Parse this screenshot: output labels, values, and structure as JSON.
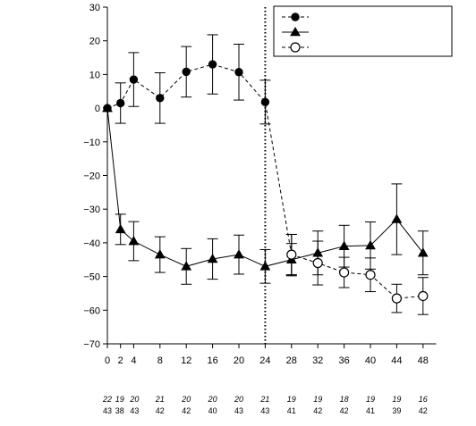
{
  "chart_data": {
    "type": "line",
    "x_ticks": [
      0,
      2,
      4,
      8,
      12,
      16,
      20,
      24,
      28,
      32,
      36,
      40,
      44,
      48
    ],
    "y_ticks": [
      30,
      20,
      10,
      0,
      -10,
      -20,
      -30,
      -40,
      -50,
      -60,
      -70
    ],
    "xlim": [
      0,
      50
    ],
    "ylim": [
      -70,
      30
    ],
    "vertical_reference_line": 24,
    "legend": {
      "placement": "top-right",
      "entries": [
        "",
        "",
        ""
      ]
    },
    "series": [
      {
        "marker": "filled-circle",
        "line_style": "dashed",
        "points": [
          {
            "x": 0,
            "y": 0,
            "err": 0
          },
          {
            "x": 2,
            "y": 1.5,
            "err": 6
          },
          {
            "x": 4,
            "y": 8.5,
            "err": 8
          },
          {
            "x": 8,
            "y": 3,
            "err": 7.5
          },
          {
            "x": 12,
            "y": 10.8,
            "err": 7.5
          },
          {
            "x": 16,
            "y": 13,
            "err": 8.8
          },
          {
            "x": 20,
            "y": 10.7,
            "err": 8.3
          },
          {
            "x": 24,
            "y": 1.8,
            "err": 6.5
          },
          {
            "x": 28,
            "y": -43.5,
            "err": 6
          }
        ]
      },
      {
        "marker": "filled-triangle",
        "line_style": "solid",
        "points": [
          {
            "x": 0,
            "y": 0,
            "err": 0
          },
          {
            "x": 2,
            "y": -36,
            "err": 4.5
          },
          {
            "x": 4,
            "y": -39.5,
            "err": 5.8
          },
          {
            "x": 8,
            "y": -43.5,
            "err": 5.3
          },
          {
            "x": 12,
            "y": -47,
            "err": 5.3
          },
          {
            "x": 16,
            "y": -44.8,
            "err": 6
          },
          {
            "x": 20,
            "y": -43.5,
            "err": 5.8
          },
          {
            "x": 24,
            "y": -47,
            "err": 5
          },
          {
            "x": 28,
            "y": -45,
            "err": 4.8
          },
          {
            "x": 32,
            "y": -43,
            "err": 6.5
          },
          {
            "x": 36,
            "y": -41,
            "err": 6.2
          },
          {
            "x": 40,
            "y": -40.8,
            "err": 7
          },
          {
            "x": 44,
            "y": -33,
            "err": 10.5
          },
          {
            "x": 48,
            "y": -43,
            "err": 6.5
          }
        ]
      },
      {
        "marker": "open-circle",
        "line_style": "dashed",
        "points": [
          {
            "x": 28,
            "y": -43.5,
            "err": 6
          },
          {
            "x": 32,
            "y": -46,
            "err": 6.5
          },
          {
            "x": 36,
            "y": -48.8,
            "err": 4.5
          },
          {
            "x": 40,
            "y": -49.5,
            "err": 5
          },
          {
            "x": 44,
            "y": -56.5,
            "err": 4.2
          },
          {
            "x": 48,
            "y": -55.8,
            "err": 5.5
          }
        ]
      }
    ],
    "n_rows": [
      {
        "italic": true,
        "values": [
          {
            "x": 0,
            "text": "22"
          },
          {
            "x": 2,
            "text": "19"
          },
          {
            "x": 4,
            "text": "20"
          },
          {
            "x": 8,
            "text": "21"
          },
          {
            "x": 12,
            "text": "20"
          },
          {
            "x": 16,
            "text": "20"
          },
          {
            "x": 20,
            "text": "20"
          },
          {
            "x": 24,
            "text": "21"
          },
          {
            "x": 28,
            "text": "19"
          },
          {
            "x": 32,
            "text": "19"
          },
          {
            "x": 36,
            "text": "18"
          },
          {
            "x": 40,
            "text": "19"
          },
          {
            "x": 44,
            "text": "19"
          },
          {
            "x": 48,
            "text": "16"
          }
        ]
      },
      {
        "italic": false,
        "values": [
          {
            "x": 0,
            "text": "43"
          },
          {
            "x": 2,
            "text": "38"
          },
          {
            "x": 4,
            "text": "43"
          },
          {
            "x": 8,
            "text": "42"
          },
          {
            "x": 12,
            "text": "42"
          },
          {
            "x": 16,
            "text": "40"
          },
          {
            "x": 20,
            "text": "43"
          },
          {
            "x": 24,
            "text": "43"
          },
          {
            "x": 28,
            "text": "41"
          },
          {
            "x": 32,
            "text": "42"
          },
          {
            "x": 36,
            "text": "42"
          },
          {
            "x": 40,
            "text": "41"
          },
          {
            "x": 44,
            "text": "39"
          },
          {
            "x": 48,
            "text": "42"
          }
        ]
      }
    ]
  }
}
